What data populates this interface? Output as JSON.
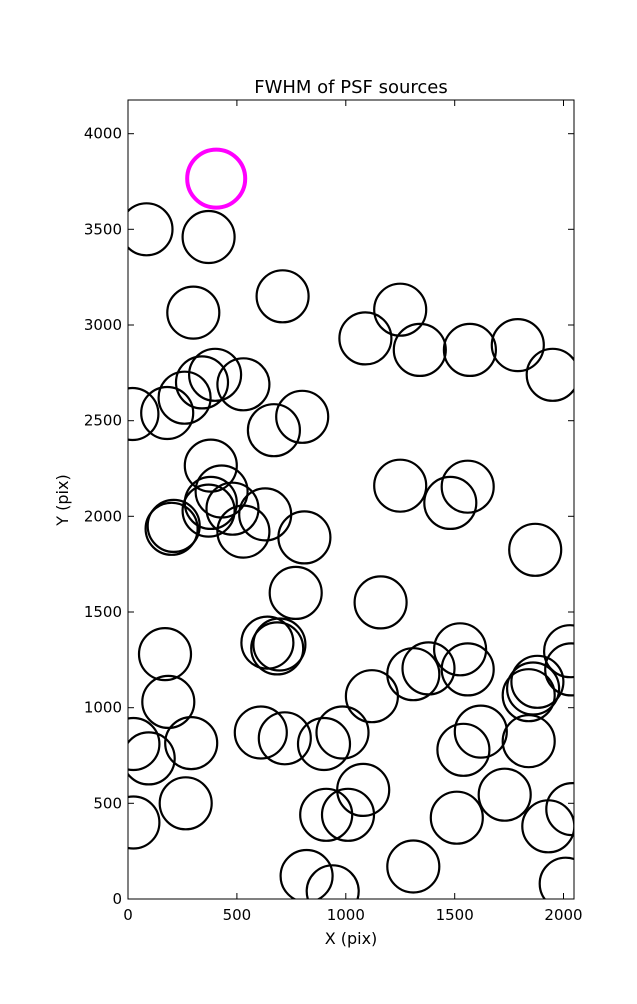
{
  "chart_data": {
    "type": "scatter",
    "title": "FWHM of PSF sources",
    "xlabel": "X (pix)",
    "ylabel": "Y (pix)",
    "xlim": [
      0,
      2048
    ],
    "ylim": [
      0,
      4176
    ],
    "xticks": [
      0,
      500,
      1000,
      1500,
      2000
    ],
    "yticks": [
      0,
      500,
      1000,
      1500,
      2000,
      2500,
      3000,
      3500,
      4000
    ],
    "grid": false,
    "marker": "open circle",
    "colors": {
      "normal": "#000000",
      "highlight": "#ff00ff"
    },
    "highlight": {
      "x": 405,
      "y": 3765
    },
    "points": [
      [
        85,
        3500
      ],
      [
        370,
        3460
      ],
      [
        300,
        3065
      ],
      [
        710,
        3150
      ],
      [
        1250,
        3080
      ],
      [
        1090,
        2930
      ],
      [
        1340,
        2870
      ],
      [
        1570,
        2870
      ],
      [
        1790,
        2895
      ],
      [
        1950,
        2740
      ],
      [
        400,
        2740
      ],
      [
        340,
        2700
      ],
      [
        260,
        2620
      ],
      [
        530,
        2690
      ],
      [
        180,
        2540
      ],
      [
        20,
        2535
      ],
      [
        670,
        2450
      ],
      [
        800,
        2520
      ],
      [
        380,
        2265
      ],
      [
        430,
        2130
      ],
      [
        480,
        2040
      ],
      [
        380,
        2070
      ],
      [
        370,
        2030
      ],
      [
        210,
        1950
      ],
      [
        200,
        1935
      ],
      [
        530,
        1920
      ],
      [
        630,
        2010
      ],
      [
        810,
        1890
      ],
      [
        1250,
        2160
      ],
      [
        1560,
        2155
      ],
      [
        1480,
        2070
      ],
      [
        1870,
        1825
      ],
      [
        770,
        1600
      ],
      [
        1160,
        1550
      ],
      [
        640,
        1340
      ],
      [
        695,
        1330
      ],
      [
        685,
        1310
      ],
      [
        170,
        1280
      ],
      [
        185,
        1030
      ],
      [
        1380,
        1205
      ],
      [
        1310,
        1175
      ],
      [
        1525,
        1305
      ],
      [
        1560,
        1200
      ],
      [
        2030,
        1295
      ],
      [
        2035,
        1200
      ],
      [
        1880,
        1135
      ],
      [
        1860,
        1100
      ],
      [
        1840,
        1065
      ],
      [
        1120,
        1060
      ],
      [
        25,
        810
      ],
      [
        95,
        735
      ],
      [
        290,
        815
      ],
      [
        610,
        870
      ],
      [
        720,
        840
      ],
      [
        900,
        810
      ],
      [
        985,
        870
      ],
      [
        1620,
        875
      ],
      [
        1540,
        780
      ],
      [
        1840,
        825
      ],
      [
        1080,
        570
      ],
      [
        910,
        440
      ],
      [
        1010,
        440
      ],
      [
        265,
        500
      ],
      [
        25,
        400
      ],
      [
        1510,
        425
      ],
      [
        1730,
        545
      ],
      [
        1930,
        380
      ],
      [
        2040,
        470
      ],
      [
        820,
        120
      ],
      [
        940,
        40
      ],
      [
        1310,
        170
      ],
      [
        2010,
        80
      ]
    ]
  }
}
